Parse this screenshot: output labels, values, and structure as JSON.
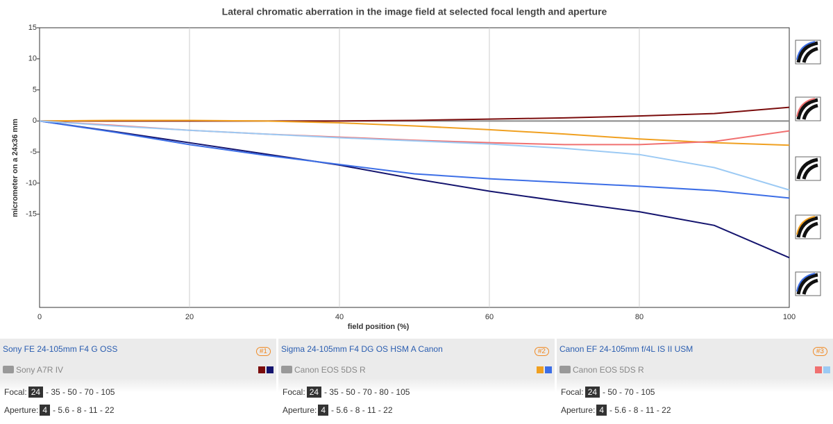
{
  "chart_data": {
    "type": "line",
    "title": "Lateral chromatic aberration in the image field at selected focal length and aperture",
    "x_label": "field position (%)",
    "y_label": "micrometer on a 24x36 mm",
    "x": [
      0,
      10,
      20,
      30,
      40,
      50,
      60,
      70,
      80,
      90,
      100
    ],
    "series": [
      {
        "color": "#7a0c0c",
        "values": [
          0,
          0,
          0,
          0,
          0,
          0.1,
          0.3,
          0.5,
          0.8,
          1.2,
          2.2
        ]
      },
      {
        "color": "#14146e",
        "values": [
          0,
          -1.7,
          -3.5,
          -5.3,
          -7.1,
          -9.3,
          -11.3,
          -13,
          -14.6,
          -16.8,
          -22
        ]
      },
      {
        "color": "#f0a020",
        "values": [
          0,
          0.1,
          0.1,
          0,
          -0.3,
          -0.8,
          -1.4,
          -2.1,
          -2.9,
          -3.5,
          -3.9
        ]
      },
      {
        "color": "#3c6ee6",
        "values": [
          0,
          -1.8,
          -3.8,
          -5.5,
          -7,
          -8.5,
          -9.3,
          -9.9,
          -10.5,
          -11.2,
          -12.4
        ]
      },
      {
        "color": "#f07070",
        "values": [
          0,
          -0.7,
          -1.5,
          -2.1,
          -2.6,
          -3.1,
          -3.5,
          -3.8,
          -3.8,
          -3.3,
          -1.6
        ]
      },
      {
        "color": "#9ccaf4",
        "values": [
          0,
          -0.8,
          -1.5,
          -2.1,
          -2.7,
          -3.2,
          -3.7,
          -4.4,
          -5.4,
          -7.5,
          -11.1
        ]
      }
    ],
    "xlim": [
      0,
      100
    ],
    "xticks": [
      0,
      20,
      40,
      60,
      80,
      100
    ],
    "ylim": [
      -30,
      15
    ],
    "yticks": [
      -15,
      -10,
      -5,
      0,
      5,
      10,
      15
    ],
    "grid": "x"
  },
  "lenses": [
    {
      "name": "Sony FE 24-105mm F4 G OSS",
      "badge": "#1",
      "camera": "Sony A7R IV",
      "focal_label": "Focal:",
      "focal_selected": "24",
      "focal_others": "- 35 - 50 - 70 - 105",
      "aperture_label": "Aperture:",
      "aperture_selected": "4",
      "aperture_others": "- 5.6 - 8 - 11 - 22"
    },
    {
      "name": "Sigma 24-105mm F4 DG OS HSM A Canon",
      "badge": "#2",
      "camera": "Canon EOS 5DS R",
      "focal_label": "Focal:",
      "focal_selected": "24",
      "focal_others": "- 35 - 50 - 70 - 80 - 105",
      "aperture_label": "Aperture:",
      "aperture_selected": "4",
      "aperture_others": "- 5.6 - 8 - 11 - 22"
    },
    {
      "name": "Canon EF 24-105mm f/4L IS II USM",
      "badge": "#3",
      "camera": "Canon EOS 5DS R",
      "focal_label": "Focal:",
      "focal_selected": "24",
      "focal_others": "- 50 - 70 - 105",
      "aperture_label": "Aperture:",
      "aperture_selected": "4",
      "aperture_others": "- 5.6 - 8 - 11 - 22"
    }
  ]
}
